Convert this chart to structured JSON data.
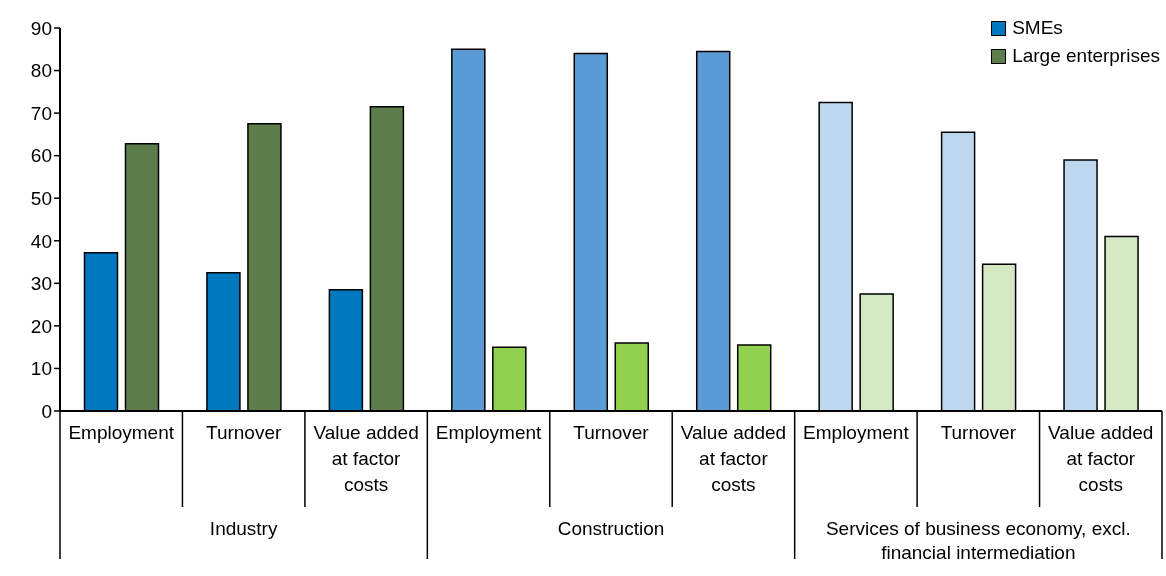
{
  "chart_data": {
    "type": "bar",
    "categories": [
      "Employment",
      "Turnover",
      "Value added at factor costs",
      "Employment",
      "Turnover",
      "Value added at factor costs",
      "Employment",
      "Turnover",
      "Value added at factor costs"
    ],
    "series": [
      {
        "name": "SMEs",
        "color": "#0078bf",
        "colors": [
          "#0078bf",
          "#0078bf",
          "#0078bf",
          "#5b9bd5",
          "#5b9bd5",
          "#5b9bd5",
          "#bdd7ee",
          "#bdd7ee",
          "#bdd7ee"
        ],
        "values": [
          37.2,
          32.5,
          28.5,
          85,
          84,
          84.5,
          72.5,
          65.5,
          59
        ]
      },
      {
        "name": "Large enterprises",
        "color": "#5e7d4c",
        "colors": [
          "#5e7d4c",
          "#5e7d4c",
          "#5e7d4c",
          "#92d050",
          "#92d050",
          "#92d050",
          "#d4e8c4",
          "#d4e8c4",
          "#d4e8c4"
        ],
        "values": [
          62.8,
          67.5,
          71.5,
          15,
          16,
          15.5,
          27.5,
          34.5,
          41
        ]
      }
    ],
    "annotations": [
      "Industry",
      "Construction",
      "Services of business economy, excl. financial intermediation"
    ],
    "ylim": [
      0,
      90
    ],
    "yticks": [
      0,
      10,
      20,
      30,
      40,
      50,
      60,
      70,
      80,
      90
    ],
    "grid": false,
    "legend": "top right"
  }
}
